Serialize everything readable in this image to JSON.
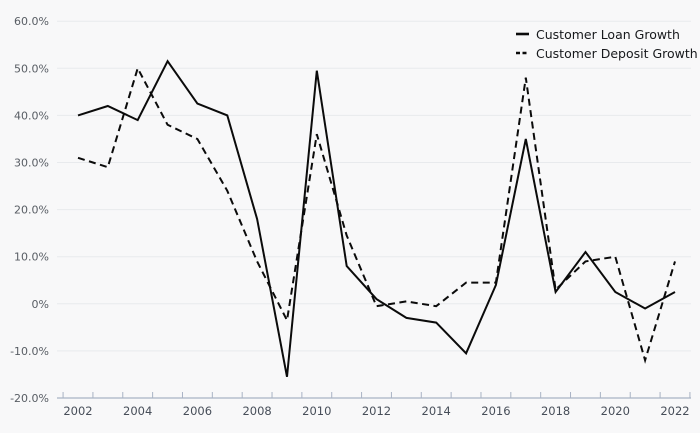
{
  "chart_data": {
    "type": "line",
    "title": "",
    "x": [
      2002,
      2003,
      2004,
      2005,
      2006,
      2007,
      2008,
      2009,
      2010,
      2011,
      2012,
      2013,
      2014,
      2015,
      2016,
      2017,
      2018,
      2019,
      2020,
      2021,
      2022
    ],
    "series": [
      {
        "name": "Customer Loan Growth",
        "line_style": "solid",
        "color": "#0b0b0b",
        "values": [
          40,
          42,
          39,
          51.5,
          42.5,
          40,
          18,
          -15.5,
          49.5,
          8,
          1,
          -3,
          -4,
          -10.5,
          4,
          35,
          2.5,
          11,
          2.5,
          -1,
          2.5
        ]
      },
      {
        "name": "Customer Deposit Growth",
        "line_style": "dashed",
        "color": "#0b0b0b",
        "values": [
          31,
          29,
          50,
          38,
          35,
          24,
          9,
          -3.5,
          36,
          14.5,
          -0.5,
          0.5,
          -0.5,
          4.5,
          4.5,
          48,
          3,
          9,
          10,
          -12,
          9
        ]
      }
    ],
    "ylim": [
      -20,
      60
    ],
    "yticks": {
      "values": [
        60,
        50,
        40,
        30,
        20,
        10,
        0,
        -10,
        -20
      ],
      "labels": [
        "60.0%",
        "50.0%",
        "40.0%",
        "30.0%",
        "20.0%",
        "10.0%",
        "0%",
        "-10.0%",
        "-20.0%"
      ]
    },
    "xticks": {
      "values": [
        2002,
        2004,
        2006,
        2008,
        2010,
        2012,
        2014,
        2016,
        2018,
        2020,
        2022
      ],
      "labels": [
        "2002",
        "2004",
        "2006",
        "2008",
        "2010",
        "2012",
        "2014",
        "2016",
        "2018",
        "2020",
        "2022"
      ]
    },
    "grid": true,
    "legend_position": "top-right",
    "colors": {
      "background": "#f8f8f9",
      "gridline": "#e8eaed",
      "axis_line": "#a9b3c4",
      "x_tick_label": "#474e59",
      "y_tick_label": "#585d64",
      "legend_text": "#17191c"
    }
  }
}
